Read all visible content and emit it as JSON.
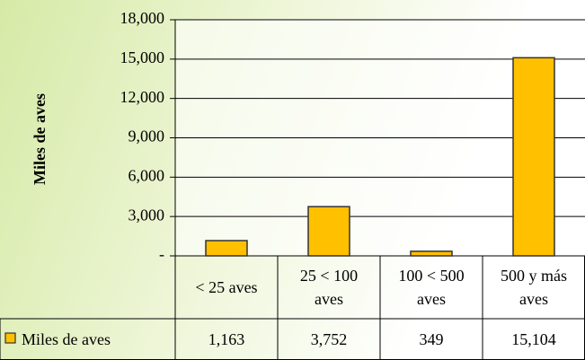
{
  "chart_data": {
    "type": "bar",
    "y_label": "Miles de aves",
    "categories": [
      "< 25 aves",
      "25 < 100 aves",
      "100 < 500 aves",
      "500 y más aves"
    ],
    "series": [
      {
        "name": "Miles de aves",
        "color": "#FFC000",
        "values": [
          1163,
          3752,
          349,
          15104
        ],
        "value_labels": [
          "1,163",
          "3,752",
          "349",
          "15,104"
        ]
      }
    ],
    "ylim": [
      0,
      18000
    ],
    "yticks": [
      {
        "value": 0,
        "label": "-"
      },
      {
        "value": 3000,
        "label": "3,000"
      },
      {
        "value": 6000,
        "label": "6,000"
      },
      {
        "value": 9000,
        "label": "9,000"
      },
      {
        "value": 12000,
        "label": "12,000"
      },
      {
        "value": 15000,
        "label": "15,000"
      },
      {
        "value": 18000,
        "label": "18,000"
      }
    ],
    "grid": true
  }
}
